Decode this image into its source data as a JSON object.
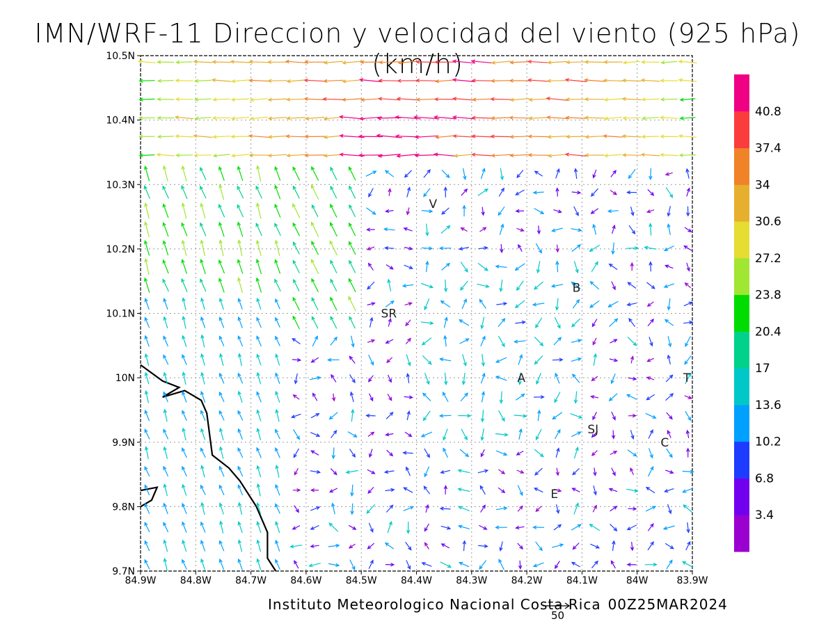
{
  "map": {
    "title": "IMN/WRF-11 Direccion y velocidad del viento (925 hPa)(km/h)",
    "footer": {
      "institution": "Instituto Meteorologico Nacional Costa Rica",
      "run": "00Z25MAR2024"
    },
    "reference_vector": {
      "label": "50",
      "value": 50
    },
    "lon_range": [
      -84.9,
      -83.9
    ],
    "lat_range": [
      9.7,
      10.5
    ],
    "x_ticks": [
      "84.9W",
      "84.8W",
      "84.7W",
      "84.6W",
      "84.5W",
      "84.4W",
      "84.3W",
      "84.2W",
      "84.1W",
      "84W",
      "83.9W"
    ],
    "y_ticks": [
      "9.7N",
      "9.8N",
      "9.9N",
      "10N",
      "10.1N",
      "10.2N",
      "10.3N",
      "10.4N",
      "10.5N"
    ],
    "place_labels": [
      {
        "text": "V",
        "lon": -84.37,
        "lat": 10.27
      },
      {
        "text": "B",
        "lon": -84.11,
        "lat": 10.14
      },
      {
        "text": "SR",
        "lon": -84.45,
        "lat": 10.1
      },
      {
        "text": "A",
        "lon": -84.21,
        "lat": 10.0
      },
      {
        "text": "SJ",
        "lon": -84.08,
        "lat": 9.92
      },
      {
        "text": "C",
        "lon": -83.95,
        "lat": 9.9
      },
      {
        "text": "E",
        "lon": -84.15,
        "lat": 9.82
      },
      {
        "text": "T",
        "lon": -83.91,
        "lat": 10.0
      }
    ],
    "colorbar": {
      "levels": [
        "3.4",
        "6.8",
        "10.2",
        "13.6",
        "17",
        "20.4",
        "23.8",
        "27.2",
        "30.6",
        "34",
        "37.4",
        "40.8"
      ],
      "colors": [
        "#9a00d0",
        "#7000ee",
        "#1e3cff",
        "#00a0ff",
        "#00c8c8",
        "#00d28c",
        "#00dc00",
        "#a0e632",
        "#e6dc32",
        "#e6af2d",
        "#f08228",
        "#fa3c3c",
        "#f00082"
      ]
    },
    "coastline": {
      "main": [
        [
          -84.9,
          10.02
        ],
        [
          -84.86,
          9.995
        ],
        [
          -84.83,
          9.985
        ],
        [
          -84.86,
          9.97
        ],
        [
          -84.82,
          9.98
        ],
        [
          -84.79,
          9.965
        ],
        [
          -84.78,
          9.945
        ],
        [
          -84.77,
          9.88
        ],
        [
          -84.74,
          9.86
        ],
        [
          -84.72,
          9.84
        ],
        [
          -84.69,
          9.8
        ],
        [
          -84.67,
          9.76
        ],
        [
          -84.67,
          9.72
        ],
        [
          -84.655,
          9.7
        ]
      ],
      "peninsula": [
        [
          -84.9,
          9.825
        ],
        [
          -84.87,
          9.83
        ],
        [
          -84.88,
          9.81
        ],
        [
          -84.9,
          9.8
        ]
      ]
    }
  }
}
